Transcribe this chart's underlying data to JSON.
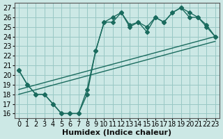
{
  "xlabel": "Humidex (Indice chaleur)",
  "bg_color": "#cce8e5",
  "grid_color": "#99c8c4",
  "line_color": "#1a6b5e",
  "xlim": [
    -0.5,
    23.5
  ],
  "ylim": [
    15.5,
    27.5
  ],
  "xticks": [
    0,
    1,
    2,
    3,
    4,
    5,
    6,
    7,
    8,
    9,
    10,
    11,
    12,
    13,
    14,
    15,
    16,
    17,
    18,
    19,
    20,
    21,
    22,
    23
  ],
  "yticks": [
    16,
    17,
    18,
    19,
    20,
    21,
    22,
    23,
    24,
    25,
    26,
    27
  ],
  "line1_x": [
    0,
    1,
    2,
    3,
    4,
    5,
    6,
    7,
    8,
    9,
    10,
    11,
    12,
    13,
    14,
    15,
    16,
    17,
    18,
    19,
    20,
    21,
    22,
    23
  ],
  "line1_y": [
    20.5,
    19,
    18,
    18,
    17,
    16,
    16,
    16,
    18,
    22.5,
    25.5,
    25.5,
    26.5,
    25,
    25.5,
    24.5,
    26,
    25.5,
    26.5,
    27,
    26,
    26,
    25,
    24
  ],
  "line2_x": [
    0,
    1,
    2,
    3,
    4,
    5,
    6,
    7,
    8,
    9,
    10,
    11,
    12,
    13,
    14,
    15,
    16,
    17,
    18,
    19,
    20,
    21,
    22,
    23
  ],
  "line2_y": [
    20.5,
    19,
    18,
    18,
    17,
    16,
    16,
    16,
    18.5,
    22.5,
    25.5,
    26,
    26.5,
    25.2,
    25.5,
    25,
    26,
    25.5,
    26.5,
    27,
    26.5,
    26,
    25.2,
    24
  ],
  "line3_x": [
    0,
    23
  ],
  "line3_y": [
    18.5,
    24.0
  ],
  "line4_x": [
    0,
    23
  ],
  "line4_y": [
    18.0,
    23.5
  ],
  "marker_size": 3,
  "linewidth": 1.0,
  "font_size_label": 8,
  "font_size_tick": 7
}
